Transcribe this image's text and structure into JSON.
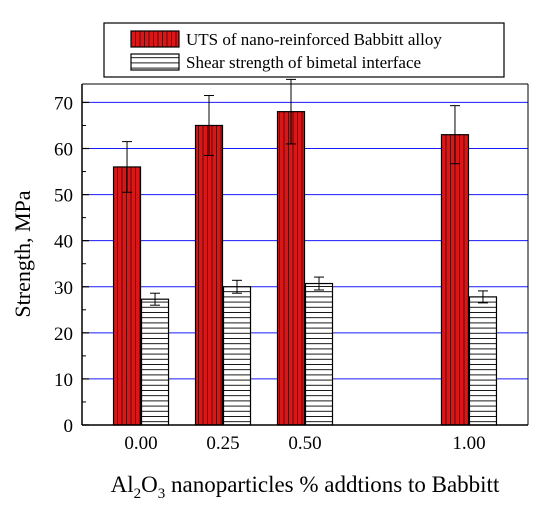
{
  "chart_data": {
    "type": "bar",
    "title": "",
    "xlabel": {
      "prefix": "Al",
      "sub1": "2",
      "mid": "O",
      "sub2": "3",
      "suffix": " nanoparticles % addtions to Babbitt"
    },
    "ylabel": "Strength, MPa",
    "x_values": [
      0.0,
      0.25,
      0.5,
      1.0
    ],
    "x_ticks": [
      "0.00",
      "0.25",
      "0.50",
      "1.00"
    ],
    "xlim": [
      -0.18,
      1.18
    ],
    "ylim": [
      0,
      74
    ],
    "y_ticks": [
      0,
      10,
      20,
      30,
      40,
      50,
      60,
      70
    ],
    "grid": true,
    "legend_position": "top-center",
    "series": [
      {
        "name": "UTS of nano-reinforced Babbitt alloy",
        "fill": "#d81818",
        "pattern": "vertical-lines",
        "values": [
          56,
          65,
          68,
          63
        ],
        "errors": [
          5.5,
          6.5,
          7.0,
          6.3
        ]
      },
      {
        "name": "Shear strength of bimetal interface",
        "fill": "#ffffff",
        "pattern": "horizontal-lines",
        "values": [
          27.3,
          30.0,
          30.7,
          27.8
        ],
        "errors": [
          1.3,
          1.4,
          1.4,
          1.3
        ]
      }
    ],
    "colors": {
      "grid": "#1a1aff",
      "axis": "#000000"
    }
  }
}
